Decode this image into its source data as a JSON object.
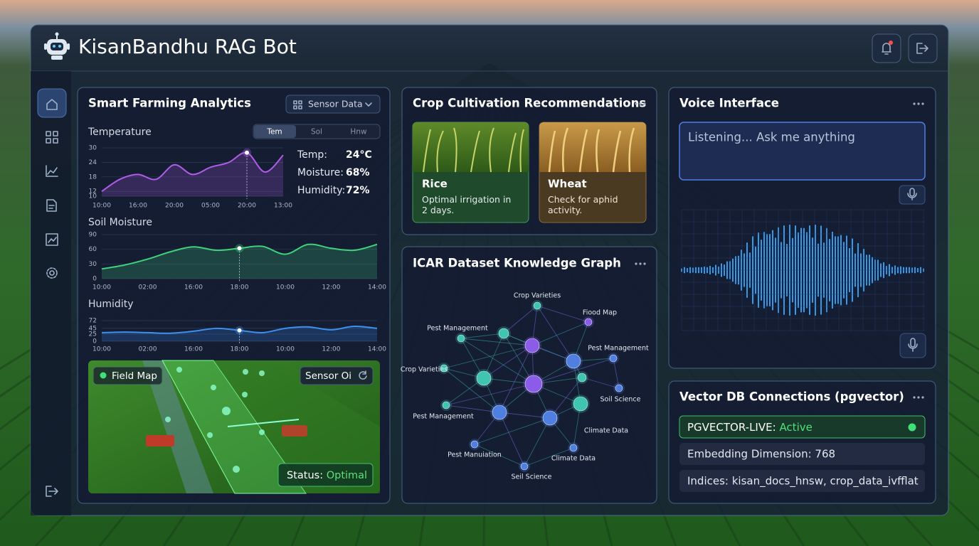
{
  "header": {
    "title": "KisanBandhu RAG Bot"
  },
  "analytics": {
    "title": "Smart Farming Analytics",
    "dropdown": "Sensor Data",
    "tabs": [
      "Tem",
      "Sol",
      "Hnw"
    ],
    "readouts": [
      {
        "label": "Temp:",
        "value": "24°C"
      },
      {
        "label": "Moisture:",
        "value": "68%"
      },
      {
        "label": "Humidity:",
        "value": "72%"
      }
    ],
    "charts": [
      {
        "type": "line",
        "title": "Temperature",
        "color": "#b15ce8",
        "categories": [
          "10:00",
          null,
          "16:00",
          null,
          "20:00",
          null,
          "05:00",
          null,
          "20:00",
          null,
          "13:00"
        ],
        "values": [
          12,
          17,
          19,
          17,
          23,
          19,
          22,
          24,
          28,
          20,
          27
        ],
        "ylim": [
          10,
          30
        ],
        "yticks": [
          10,
          12,
          18,
          24,
          30
        ],
        "highlight": 8
      },
      {
        "type": "line",
        "title": "Soil Moisture",
        "color": "#3fd27a",
        "categories": [
          "10:00",
          null,
          "02:00",
          null,
          "16:00",
          null,
          "18:00",
          null,
          "10:00",
          null,
          "12:00",
          null,
          "14:00"
        ],
        "values": [
          20,
          28,
          40,
          55,
          65,
          58,
          62,
          66,
          50,
          70,
          62,
          58,
          70
        ],
        "ylim": [
          0,
          90
        ],
        "yticks": [
          0,
          30,
          60,
          90
        ],
        "highlight": 6
      },
      {
        "type": "line",
        "title": "Humidity",
        "color": "#3d8ff0",
        "categories": [
          "10:00",
          null,
          "02:00",
          null,
          "16:00",
          null,
          "18:00",
          null,
          "10:00",
          null,
          "12:00",
          null,
          "14:00"
        ],
        "values": [
          30,
          32,
          30,
          28,
          35,
          45,
          38,
          30,
          45,
          50,
          40,
          52,
          45
        ],
        "ylim": [
          0,
          72
        ],
        "yticks": [
          0,
          25,
          45,
          72
        ],
        "highlight": 6
      }
    ],
    "field_map": {
      "title": "Field Map",
      "button": "Sensor Oi",
      "status_label": "Status:",
      "status_value": "Optimal"
    }
  },
  "crops": {
    "title": "Crop Cultivation Recommendations",
    "cards": [
      {
        "name": "Rice",
        "note": "Optimal irrigation in 2 days."
      },
      {
        "name": "Wheat",
        "note": "Check for aphid activity."
      }
    ]
  },
  "graph": {
    "title": "ICAR Dataset Knowledge Graph",
    "labels": [
      "Crop Varieties",
      "Fiood Map",
      "Pest Management",
      "Pest Management",
      "Crop Varieties",
      "Soil Science",
      "Pest Management",
      "Climate Data",
      "Pest Manuiation",
      "Climate Data",
      "Seil Science"
    ]
  },
  "voice": {
    "title": "Voice Interface",
    "placeholder": "Listening... Ask me anything"
  },
  "vector_db": {
    "title": "Vector DB Connections (pgvector)",
    "status_label": "PGVECTOR-LIVE:",
    "status_value": "Active",
    "rows": [
      "Embedding Dimension: 768",
      "Indices: kisan_docs_hnsw, crop_data_ivfflat"
    ]
  }
}
